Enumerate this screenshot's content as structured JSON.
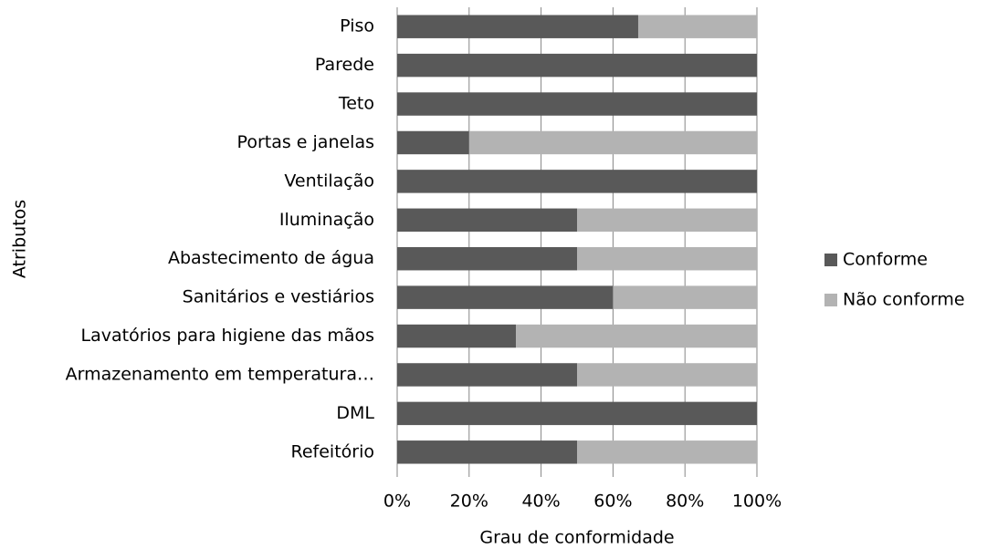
{
  "chart_data": {
    "type": "bar",
    "orientation": "horizontal",
    "stacked": true,
    "x_label": "Grau de conformidade",
    "y_label": "Atributos",
    "categories": [
      "Piso",
      "Parede",
      "Teto",
      "Portas e janelas",
      "Ventilação",
      "Iluminação",
      "Abastecimento de água",
      "Sanitários e vestiários",
      "Lavatórios para higiene das mãos",
      "Armazenamento em temperatura…",
      "DML",
      "Refeitório"
    ],
    "series": [
      {
        "name": "Conforme",
        "color": "#595959",
        "values": [
          67,
          100,
          100,
          20,
          100,
          50,
          50,
          60,
          33,
          50,
          100,
          50
        ]
      },
      {
        "name": "Não conforme",
        "color": "#b3b3b3",
        "values": [
          33,
          0,
          0,
          80,
          0,
          50,
          50,
          40,
          67,
          50,
          0,
          50
        ]
      }
    ],
    "xlim": [
      0,
      100
    ],
    "xticks": [
      {
        "value": 0,
        "label": "0%"
      },
      {
        "value": 20,
        "label": "20%"
      },
      {
        "value": 40,
        "label": "40%"
      },
      {
        "value": 60,
        "label": "60%"
      },
      {
        "value": 80,
        "label": "80%"
      },
      {
        "value": 100,
        "label": "100%"
      }
    ],
    "grid": true,
    "legend": "right"
  }
}
